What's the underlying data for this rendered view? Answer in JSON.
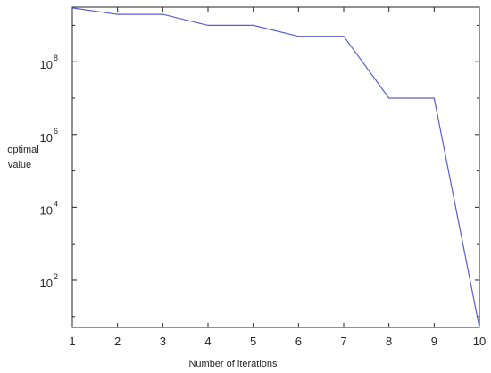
{
  "chart_data": {
    "type": "line",
    "title": "",
    "xlabel": "Number of iterations",
    "ylabel_lines": [
      "optimal",
      "value"
    ],
    "yscale": "log",
    "xlim": [
      1,
      10
    ],
    "ylim_log10": [
      0.7,
      9.5
    ],
    "grid": false,
    "legend": "none",
    "x_ticks": [
      "1",
      "2",
      "3",
      "4",
      "5",
      "6",
      "7",
      "8",
      "9",
      "10"
    ],
    "y_ticks": [
      {
        "value": 100,
        "base": "10",
        "exp": "2"
      },
      {
        "value": 10000,
        "base": "10",
        "exp": "4"
      },
      {
        "value": 1000000,
        "base": "10",
        "exp": "6"
      },
      {
        "value": 100000000,
        "base": "10",
        "exp": "8"
      }
    ],
    "series": [
      {
        "color": "#5b5bd6",
        "x": [
          1,
          2,
          3,
          4,
          5,
          6,
          7,
          8,
          9,
          10
        ],
        "y": [
          3000000000,
          2000000000,
          2000000000,
          1000000000,
          1000000000,
          500000000,
          500000000,
          10000000,
          10000000,
          5
        ]
      }
    ]
  }
}
